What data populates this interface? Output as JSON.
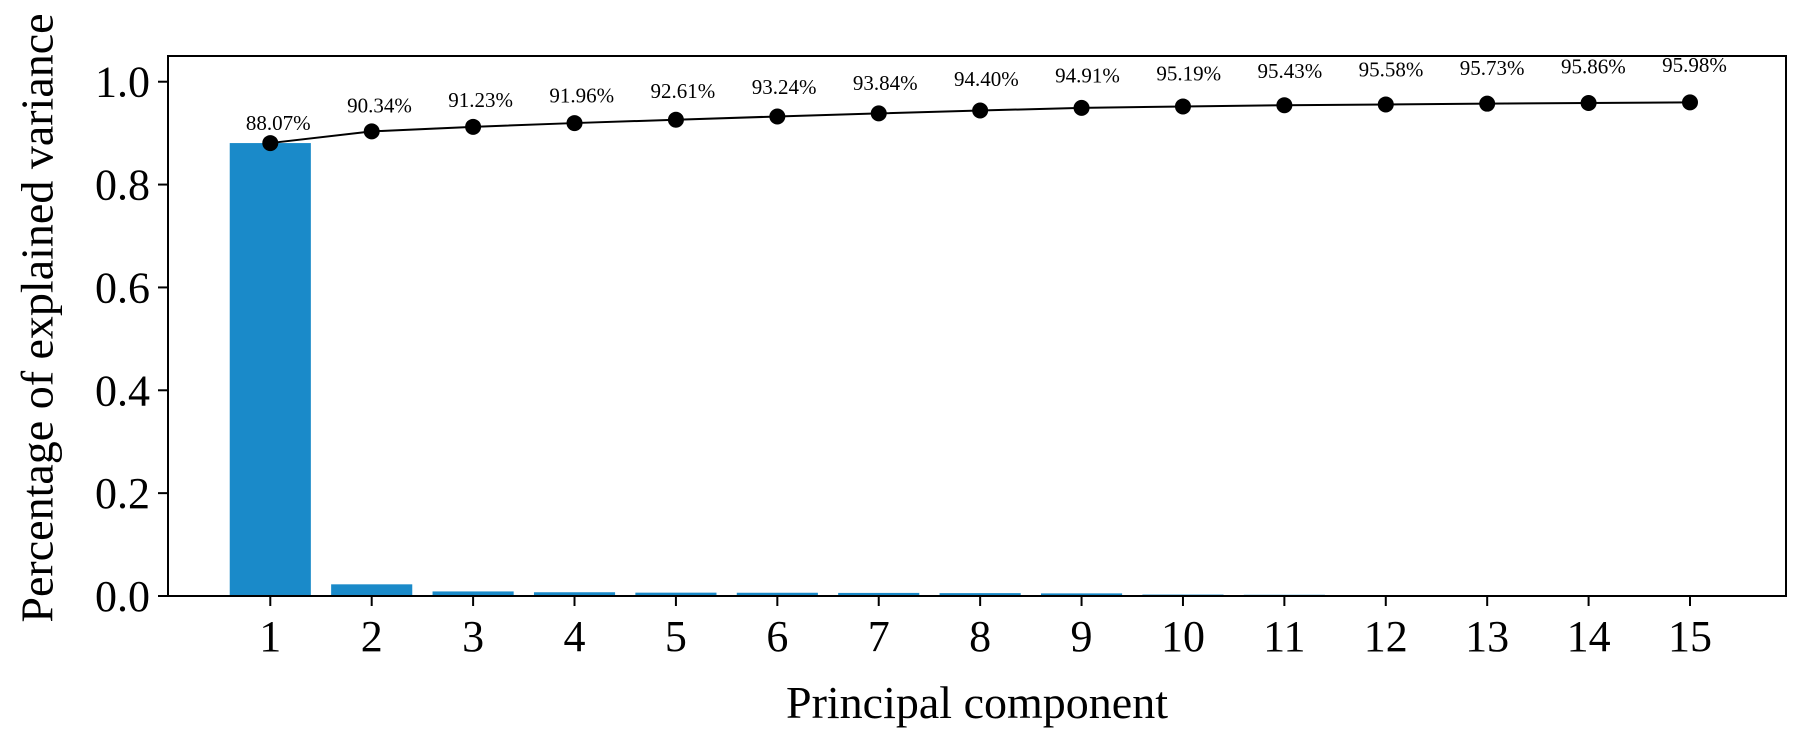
{
  "chart_data": {
    "type": "bar",
    "xlabel": "Principal component",
    "ylabel": "Percentage of explained variance",
    "categories": [
      "1",
      "2",
      "3",
      "4",
      "5",
      "6",
      "7",
      "8",
      "9",
      "10",
      "11",
      "12",
      "13",
      "14",
      "15"
    ],
    "ylim": [
      0,
      1.05
    ],
    "yticks": [
      0.0,
      0.2,
      0.4,
      0.6,
      0.8,
      1.0
    ],
    "ytick_labels": [
      "0.0",
      "0.2",
      "0.4",
      "0.6",
      "0.8",
      "1.0"
    ],
    "grid": false,
    "legend": "none",
    "series": [
      {
        "type": "bar",
        "values": [
          0.8807,
          0.0227,
          0.0089,
          0.0073,
          0.0065,
          0.0063,
          0.006,
          0.0056,
          0.0051,
          0.0028,
          0.0024,
          0.0015,
          0.0015,
          0.0013,
          0.0012
        ],
        "color": "#1a8ac9"
      },
      {
        "type": "line",
        "values": [
          0.8807,
          0.9034,
          0.9123,
          0.9196,
          0.9261,
          0.9324,
          0.9384,
          0.944,
          0.9491,
          0.9519,
          0.9543,
          0.9558,
          0.9573,
          0.9586,
          0.9598
        ],
        "labels": [
          "88.07%",
          "90.34%",
          "91.23%",
          "91.96%",
          "92.61%",
          "93.24%",
          "93.84%",
          "94.40%",
          "94.91%",
          "95.19%",
          "95.43%",
          "95.58%",
          "95.73%",
          "95.86%",
          "95.98%"
        ],
        "color": "#000000",
        "marker": "circle"
      }
    ]
  }
}
